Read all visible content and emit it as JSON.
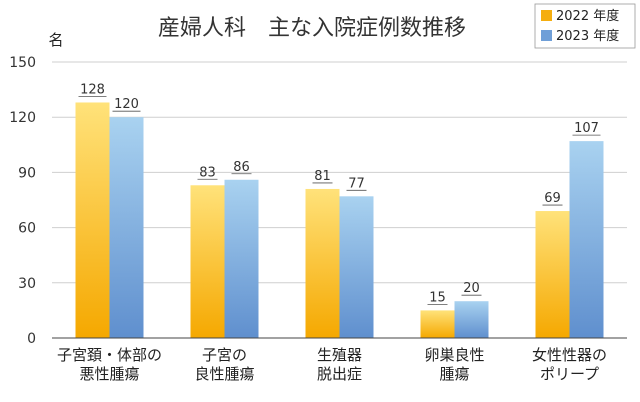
{
  "chart_data": {
    "type": "bar",
    "title": "産婦人科　主な入院症例数推移",
    "ylabel": "名",
    "xlabel": "",
    "ylim": [
      0,
      150
    ],
    "yticks": [
      0,
      30,
      60,
      90,
      120,
      150
    ],
    "grid": true,
    "legend_position": "top-right",
    "categories": [
      [
        "子宮頚・体部の",
        "悪性腫瘍"
      ],
      [
        "子宮の",
        "良性腫瘍"
      ],
      [
        "生殖器",
        "脱出症"
      ],
      [
        "卵巣良性",
        "腫瘍"
      ],
      [
        "女性性器の",
        "ポリープ"
      ]
    ],
    "series": [
      {
        "name": "2022 年度",
        "values": [
          128,
          83,
          81,
          15,
          69
        ],
        "color": "#f5ae0f"
      },
      {
        "name": "2023 年度",
        "values": [
          120,
          86,
          77,
          20,
          107
        ],
        "color": "#6f9fd8"
      }
    ]
  }
}
